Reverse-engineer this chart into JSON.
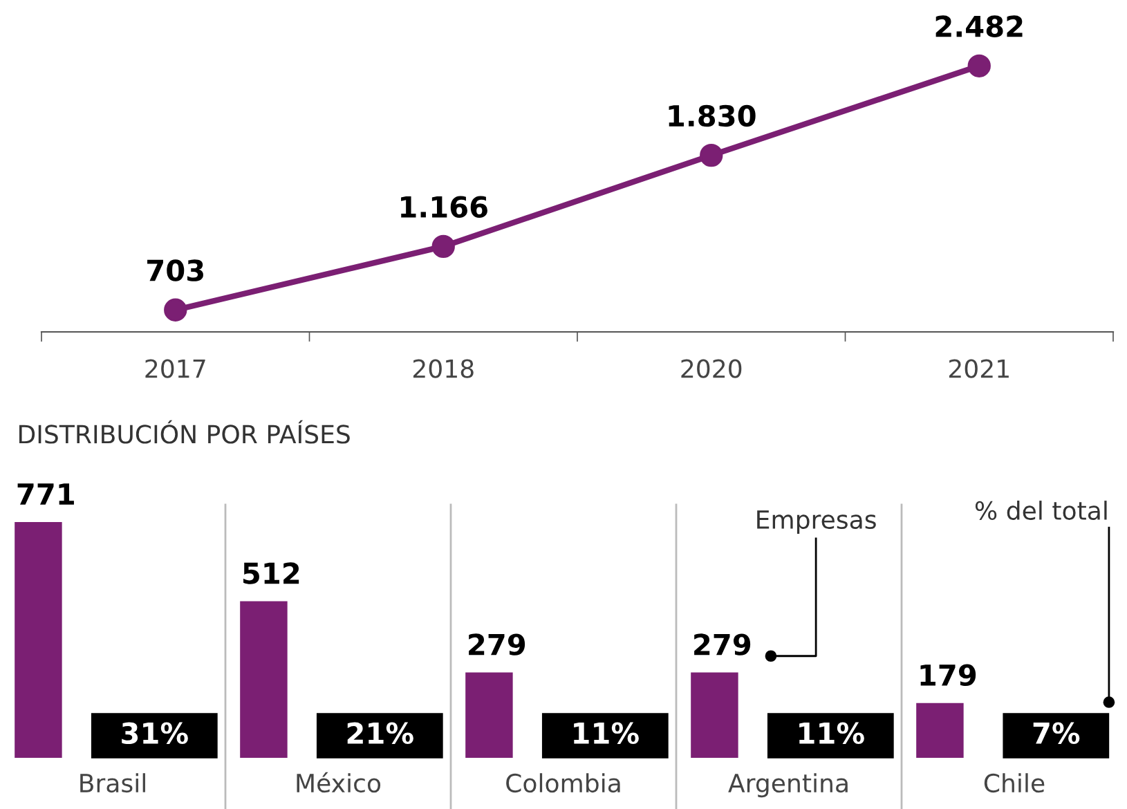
{
  "chart_data": [
    {
      "type": "line",
      "categories": [
        "2017",
        "2018",
        "2020",
        "2021"
      ],
      "marker": "circle",
      "series": [
        {
          "color": "#7b1f73",
          "values": [
            703,
            1166,
            1830,
            2482
          ],
          "value_labels": [
            "703",
            "1.166",
            "1.830",
            "2.482"
          ]
        }
      ]
    },
    {
      "type": "bar",
      "title": "DISTRIBUCIÓN POR PAÍSES",
      "categories": [
        "Brasil",
        "México",
        "Colombia",
        "Argentina",
        "Chile"
      ],
      "series": [
        {
          "name": "Empresas",
          "color": "#7b1f73",
          "values": [
            771,
            512,
            279,
            279,
            179
          ],
          "value_labels": [
            "771",
            "512",
            "279",
            "279",
            "179"
          ]
        }
      ],
      "annotations": [
        "31%",
        "21%",
        "11%",
        "11%",
        "7%",
        "% del total"
      ]
    }
  ]
}
